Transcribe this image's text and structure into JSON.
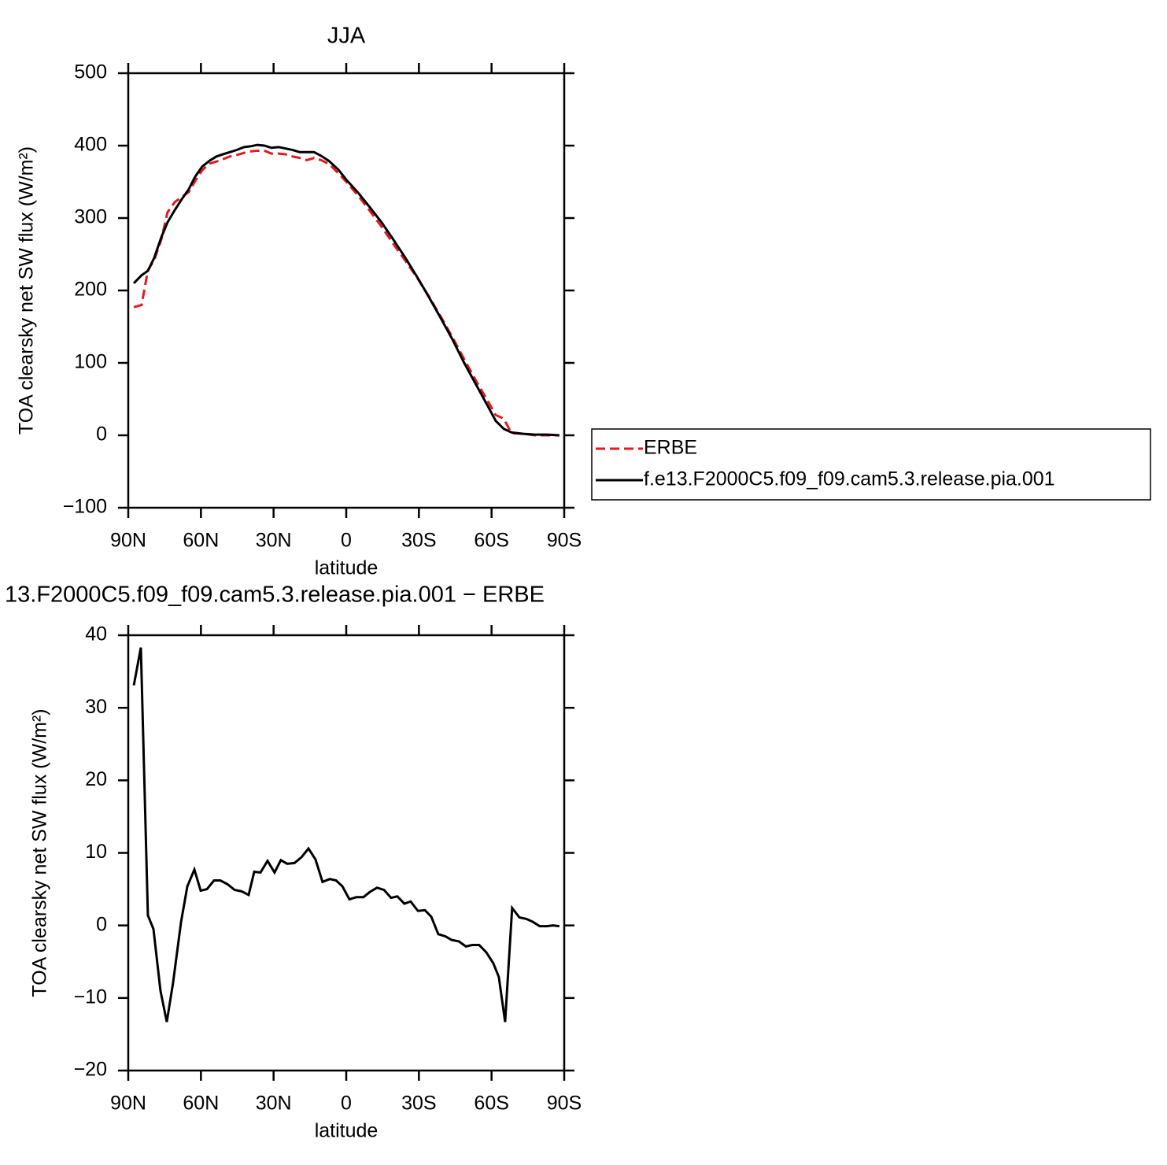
{
  "chart_data": [
    {
      "type": "line",
      "title": "JJA",
      "xlabel": "latitude",
      "ylabel": "TOA clearsky net SW flux (W/m²)",
      "xlim": [
        90,
        -90
      ],
      "xticks": [
        {
          "value": 90,
          "label": "90N"
        },
        {
          "value": 60,
          "label": "60N"
        },
        {
          "value": 30,
          "label": "30N"
        },
        0,
        {
          "value": -30,
          "label": "30S"
        },
        {
          "value": -60,
          "label": "60S"
        },
        {
          "value": -90,
          "label": "90S"
        }
      ],
      "ylim": [
        -100,
        500
      ],
      "yticks": [
        {
          "value": -100,
          "label": "−100"
        },
        0,
        100,
        200,
        300,
        400,
        500
      ],
      "legend": "right",
      "x": [
        87.7,
        84.5,
        81.9,
        79.3,
        76.4,
        73.8,
        70.8,
        67.9,
        65,
        62.4,
        59.5,
        56.5,
        53.6,
        51,
        48.1,
        45.2,
        42.2,
        39.6,
        36.7,
        33.8,
        30.9,
        27.9,
        25,
        22.1,
        19.2,
        16.3,
        13.3,
        10.4,
        7.2,
        3.3,
        0,
        -4.9,
        -9.7,
        -14.6,
        -19.5,
        -24.4,
        -29.2,
        -34.1,
        -39,
        -43.9,
        -48.7,
        -53.6,
        -58.5,
        -61.7,
        -65,
        -68.2,
        -73.1,
        -78,
        -82.8,
        -88
      ],
      "series": [
        {
          "name": "ERBE",
          "color": "#e41a1c",
          "dash": true,
          "values": [
            177,
            180,
            228,
            242,
            270,
            308,
            322,
            329,
            336,
            351,
            366,
            375,
            378,
            381,
            385,
            387,
            390,
            392,
            393,
            393,
            389,
            389,
            388,
            385,
            383,
            380,
            383,
            380,
            375,
            362,
            350,
            331,
            310,
            288,
            264,
            241,
            218,
            192,
            164,
            135,
            105,
            75,
            47,
            28,
            23,
            3,
            2,
            0,
            0,
            0
          ]
        },
        {
          "name": "f.e13.F2000C5.f09_f09.cam5.3.release.pia.001",
          "color": "#000000",
          "dash": false,
          "values": [
            210,
            221,
            227,
            245,
            273,
            294,
            311,
            326,
            340,
            357,
            371,
            379,
            385,
            388,
            391,
            394,
            398,
            399,
            401,
            400,
            397,
            398,
            396,
            394,
            391,
            391,
            391,
            386,
            379,
            367,
            353,
            335,
            315,
            294,
            270,
            245,
            219,
            191,
            162,
            132,
            100,
            70,
            40,
            20,
            9,
            4,
            2,
            1,
            1,
            0
          ]
        }
      ]
    },
    {
      "type": "line",
      "title": "13.F2000C5.f09_f09.cam5.3.release.pia.001 − ERBE",
      "xlabel": "latitude",
      "ylabel": "TOA clearsky net SW flux (W/m²)",
      "xlim": [
        90,
        -90
      ],
      "xticks": [
        {
          "value": 90,
          "label": "90N"
        },
        {
          "value": 60,
          "label": "60N"
        },
        {
          "value": 30,
          "label": "30N"
        },
        0,
        {
          "value": -30,
          "label": "30S"
        },
        {
          "value": -60,
          "label": "60S"
        },
        {
          "value": -90,
          "label": "90S"
        }
      ],
      "ylim": [
        -20,
        40
      ],
      "yticks": [
        {
          "value": -20,
          "label": "−20"
        },
        {
          "value": -10,
          "label": "−10"
        },
        0,
        10,
        20,
        30,
        40
      ],
      "x": [
        87.7,
        84.8,
        81.9,
        79.6,
        76.7,
        74.1,
        71.5,
        68.2,
        65.6,
        62.7,
        60.1,
        57.5,
        54.6,
        52,
        49.1,
        46.1,
        43.2,
        40.3,
        38,
        35.4,
        32.5,
        29.6,
        27,
        24.4,
        21.4,
        18.5,
        15.6,
        12.7,
        9.8,
        6.8,
        4.2,
        1.6,
        -1.3,
        -4.2,
        -7.1,
        -9.7,
        -12.7,
        -15.6,
        -18.5,
        -21.1,
        -24,
        -26.6,
        -29.6,
        -32.5,
        -35.1,
        -38,
        -40.9,
        -43.5,
        -46.5,
        -49.4,
        -52,
        -54.9,
        -57.8,
        -60.7,
        -63,
        -65.6,
        -68.5,
        -71.5,
        -74.4,
        -77,
        -79.9,
        -82.8,
        -85.4,
        -88
      ],
      "color": "#000000",
      "values": [
        33.1,
        38.3,
        1.4,
        -0.5,
        -9,
        -13.3,
        -7.9,
        0.5,
        5.4,
        7.7,
        4.8,
        5,
        6.2,
        6.2,
        5.7,
        4.9,
        4.7,
        4.2,
        7.4,
        7.3,
        8.9,
        7.3,
        9,
        8.5,
        8.6,
        9.4,
        10.6,
        9.1,
        6,
        6.4,
        6.2,
        5.4,
        3.6,
        3.9,
        3.9,
        4.6,
        5.2,
        4.9,
        3.8,
        4,
        3,
        3.3,
        2,
        2.1,
        1.2,
        -1.2,
        -1.5,
        -2,
        -2.2,
        -2.9,
        -2.7,
        -2.7,
        -3.7,
        -5.2,
        -7.1,
        -13.3,
        2.4,
        1.1,
        0.9,
        0.5,
        -0.1,
        -0.1,
        0,
        -0.1
      ]
    }
  ]
}
